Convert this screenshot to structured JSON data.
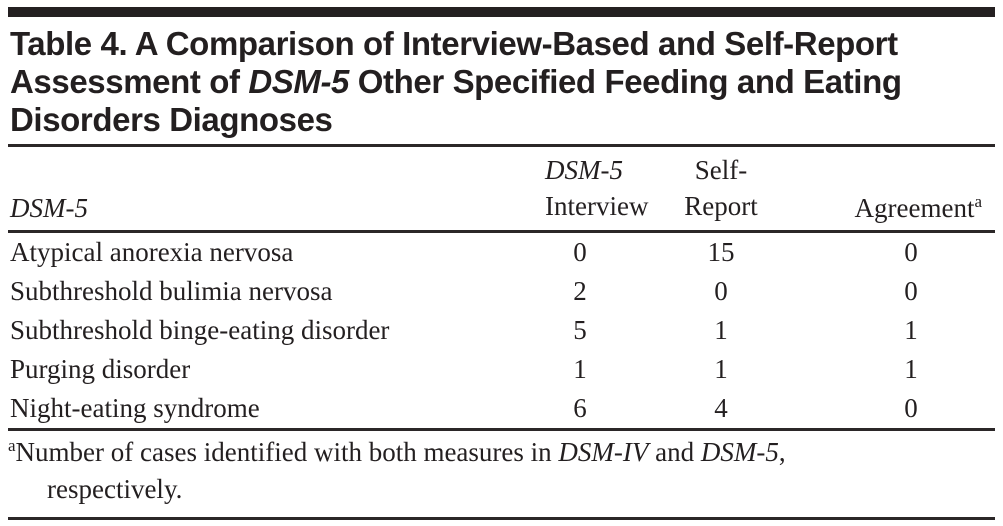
{
  "title": {
    "line1": "Table 4. A Comparison of Interview-Based and Self-Report",
    "line2_pre": "Assessment of ",
    "line2_italic": "DSM-5",
    "line2_post": " Other Specified Feeding and Eating",
    "line3": "Disorders Diagnoses"
  },
  "table": {
    "columns": {
      "col1_label": "DSM-5",
      "col2_line1": "DSM-5",
      "col2_line2": "Interview",
      "col3_line1": "Self-",
      "col3_line2": "Report",
      "col4_label": "Agreement",
      "col4_superscript": "a"
    },
    "rows": [
      {
        "diagnosis": "Atypical anorexia nervosa",
        "interview": "0",
        "self_report": "15",
        "agreement": "0"
      },
      {
        "diagnosis": "Subthreshold bulimia nervosa",
        "interview": "2",
        "self_report": "0",
        "agreement": "0"
      },
      {
        "diagnosis": "Subthreshold binge-eating disorder",
        "interview": "5",
        "self_report": "1",
        "agreement": "1"
      },
      {
        "diagnosis": "Purging disorder",
        "interview": "1",
        "self_report": "1",
        "agreement": "1"
      },
      {
        "diagnosis": "Night-eating syndrome",
        "interview": "6",
        "self_report": "4",
        "agreement": "0"
      }
    ]
  },
  "footnote": {
    "superscript": "a",
    "text_pre": "Number of cases identified with both measures in ",
    "italic1": "DSM-IV",
    "text_mid": " and ",
    "italic2": "DSM-5",
    "text_post": ",",
    "line2": "respectively."
  },
  "colors": {
    "text": "#231f20",
    "rule": "#2b2728",
    "top_bar": "#242021",
    "background": "#ffffff"
  }
}
